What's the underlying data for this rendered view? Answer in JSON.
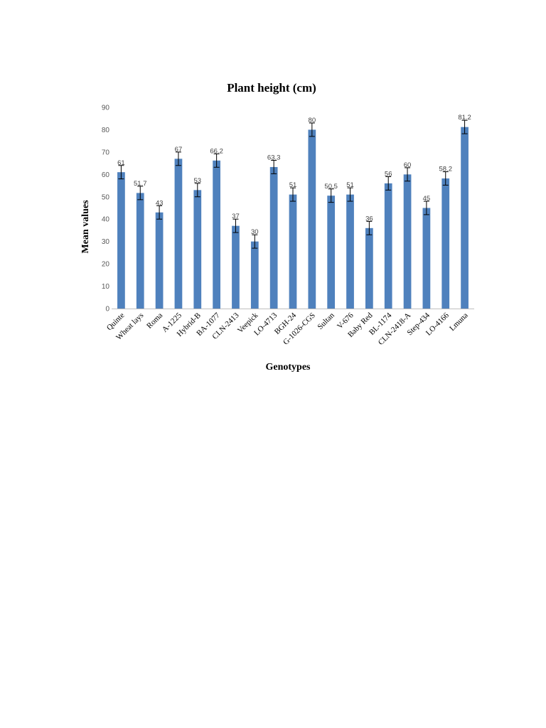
{
  "chart_data": {
    "type": "bar",
    "title": "Plant height (cm)",
    "xlabel": "Genotypes",
    "ylabel": "Mean values",
    "ylim": [
      0,
      90
    ],
    "yticks": [
      0,
      10,
      20,
      30,
      40,
      50,
      60,
      70,
      80,
      90
    ],
    "grid": false,
    "legend": "none",
    "bar_color": "#4f81bd",
    "categories": [
      "Quinte",
      "Wheat lays",
      "Roma",
      "A-1225",
      "Hybrid-B",
      "BA-1077",
      "CLN-2413",
      "Veepick",
      "LO-4713",
      "BGH-24",
      "G-1026-CGS",
      "Sultan",
      "V-676",
      "Baby Red",
      "BL-1174",
      "CLN-2418-A",
      "Step-434",
      "LO-4166",
      "Lmuna"
    ],
    "values": [
      61,
      51.7,
      43,
      67,
      53,
      66.2,
      37,
      30,
      63.3,
      51,
      80,
      50.5,
      51,
      36,
      56,
      60,
      45,
      58.2,
      81.2
    ],
    "data_labels": [
      "61",
      "51.7",
      "43",
      "67",
      "53",
      "66.2",
      "37",
      "30",
      "63.3",
      "51",
      "80",
      "50.5",
      "51",
      "36",
      "56",
      "60",
      "45",
      "58.2",
      "81.2"
    ],
    "error": [
      3,
      3,
      3,
      3,
      3,
      3,
      3,
      3,
      3,
      3,
      3,
      3,
      3,
      3,
      3,
      3,
      3,
      3,
      3
    ]
  }
}
